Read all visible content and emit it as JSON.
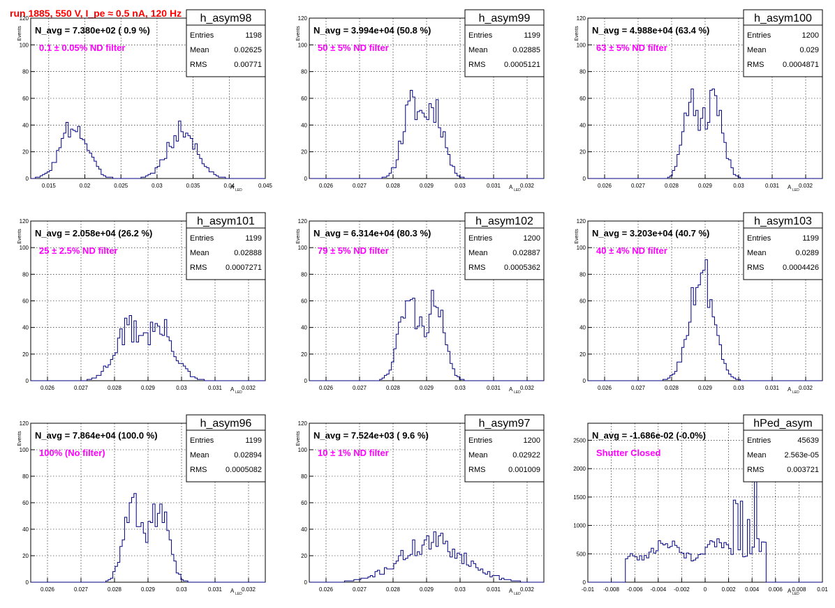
{
  "header": {
    "run_title": "run 1885,   550 V, I_pe ≈ 0.5 nA, 120 Hz"
  },
  "colors": {
    "histogram": "#000080",
    "grid": "#000000",
    "frame": "#000000",
    "title_red": "#ff0000",
    "annotation_magenta": "#ff00ff"
  },
  "stats_labels": {
    "entries": "Entries",
    "mean": "Mean",
    "rms": "RMS"
  },
  "chart_data": [
    {
      "type": "histogram",
      "name": "h_asym98",
      "ylabel": "Events",
      "xlabel": "A",
      "xlabel_sub": "LED",
      "xlim": [
        0.0125,
        0.045
      ],
      "ylim": [
        0,
        120
      ],
      "xticks": [
        0.015,
        0.02,
        0.025,
        0.03,
        0.035,
        0.04,
        0.045
      ],
      "xtick_labels": [
        "0.015",
        "0.02",
        "0.025",
        "0.03",
        "0.035",
        "0.04",
        "0.045"
      ],
      "yticks": [
        0,
        20,
        40,
        60,
        80,
        100,
        120
      ],
      "ytick_labels": [
        "0",
        "20",
        "40",
        "60",
        "80",
        "100",
        "120"
      ],
      "navg": "N_avg = 7.380e+02 ( 0.9 %)",
      "annotation": "0.1 ± 0.05% ND filter",
      "stats": {
        "entries": "1198",
        "mean": "0.02625",
        "rms": "0.00771"
      },
      "peaks": [
        {
          "c": 0.0185,
          "a": 40,
          "s": 0.0018
        },
        {
          "c": 0.0335,
          "a": 36,
          "s": 0.002
        }
      ],
      "noise": 0.25,
      "bins": 100,
      "seed": 3
    },
    {
      "type": "histogram",
      "name": "h_asym99",
      "ylabel": "Events",
      "xlabel": "A",
      "xlabel_sub": "LED",
      "xlim": [
        0.0255,
        0.0325
      ],
      "ylim": [
        0,
        120
      ],
      "xticks": [
        0.026,
        0.027,
        0.028,
        0.029,
        0.03,
        0.031,
        0.032
      ],
      "xtick_labels": [
        "0.026",
        "0.027",
        "0.028",
        "0.029",
        "0.03",
        "0.031",
        "0.032"
      ],
      "yticks": [
        0,
        20,
        40,
        60,
        80,
        100,
        120
      ],
      "ytick_labels": [
        "0",
        "20",
        "40",
        "60",
        "80",
        "100",
        "120"
      ],
      "navg": "N_avg = 3.994e+04 (50.8 %)",
      "annotation": "50 ± 5% ND filter",
      "stats": {
        "entries": "1199",
        "mean": "0.02885",
        "rms": "0.0005121"
      },
      "peaks": [
        {
          "c": 0.02855,
          "a": 52,
          "s": 0.00028
        },
        {
          "c": 0.02925,
          "a": 52,
          "s": 0.00028
        }
      ],
      "noise": 0.25,
      "bins": 100,
      "seed": 11
    },
    {
      "type": "histogram",
      "name": "h_asym100",
      "ylabel": "Events",
      "xlabel": "A",
      "xlabel_sub": "LED",
      "xlim": [
        0.0255,
        0.0325
      ],
      "ylim": [
        0,
        120
      ],
      "xticks": [
        0.026,
        0.027,
        0.028,
        0.029,
        0.03,
        0.031,
        0.032
      ],
      "xtick_labels": [
        "0.026",
        "0.027",
        "0.028",
        "0.029",
        "0.03",
        "0.031",
        "0.032"
      ],
      "yticks": [
        0,
        20,
        40,
        60,
        80,
        100,
        120
      ],
      "ytick_labels": [
        "0",
        "20",
        "40",
        "60",
        "80",
        "100",
        "120"
      ],
      "navg": "N_avg = 4.988e+04 (63.4 %)",
      "annotation": "63 ± 5% ND filter",
      "stats": {
        "entries": "1200",
        "mean": "0.029",
        "rms": "0.0004871"
      },
      "peaks": [
        {
          "c": 0.0286,
          "a": 58,
          "s": 0.00025
        },
        {
          "c": 0.0293,
          "a": 56,
          "s": 0.00025
        }
      ],
      "noise": 0.25,
      "bins": 100,
      "seed": 21
    },
    {
      "type": "histogram",
      "name": "h_asym101",
      "ylabel": "Events",
      "xlabel": "A",
      "xlabel_sub": "LED",
      "xlim": [
        0.0255,
        0.0325
      ],
      "ylim": [
        0,
        120
      ],
      "xticks": [
        0.026,
        0.027,
        0.028,
        0.029,
        0.03,
        0.031,
        0.032
      ],
      "xtick_labels": [
        "0.026",
        "0.027",
        "0.028",
        "0.029",
        "0.03",
        "0.031",
        "0.032"
      ],
      "yticks": [
        0,
        20,
        40,
        60,
        80,
        100,
        120
      ],
      "ytick_labels": [
        "0",
        "20",
        "40",
        "60",
        "80",
        "100",
        "120"
      ],
      "navg": "N_avg = 2.058e+04 (26.2 %)",
      "annotation": "25 ± 2.5% ND filter",
      "stats": {
        "entries": "1199",
        "mean": "0.02888",
        "rms": "0.0007271"
      },
      "peaks": [
        {
          "c": 0.0284,
          "a": 36,
          "s": 0.00042
        },
        {
          "c": 0.0294,
          "a": 36,
          "s": 0.00042
        }
      ],
      "noise": 0.3,
      "bins": 100,
      "seed": 31
    },
    {
      "type": "histogram",
      "name": "h_asym102",
      "ylabel": "Events",
      "xlabel": "A",
      "xlabel_sub": "LED",
      "xlim": [
        0.0255,
        0.0325
      ],
      "ylim": [
        0,
        120
      ],
      "xticks": [
        0.026,
        0.027,
        0.028,
        0.029,
        0.03,
        0.031,
        0.032
      ],
      "xtick_labels": [
        "0.026",
        "0.027",
        "0.028",
        "0.029",
        "0.03",
        "0.031",
        "0.032"
      ],
      "yticks": [
        0,
        20,
        40,
        60,
        80,
        100,
        120
      ],
      "ytick_labels": [
        "0",
        "20",
        "40",
        "60",
        "80",
        "100",
        "120"
      ],
      "navg": "N_avg = 6.314e+04 (80.3 %)",
      "annotation": "79 ± 5% ND filter",
      "stats": {
        "entries": "1200",
        "mean": "0.02887",
        "rms": "0.0005362"
      },
      "peaks": [
        {
          "c": 0.02845,
          "a": 58,
          "s": 0.00028
        },
        {
          "c": 0.02925,
          "a": 55,
          "s": 0.00028
        }
      ],
      "noise": 0.25,
      "bins": 100,
      "seed": 41
    },
    {
      "type": "histogram",
      "name": "h_asym103",
      "ylabel": "Events",
      "xlabel": "A",
      "xlabel_sub": "LED",
      "xlim": [
        0.0255,
        0.0325
      ],
      "ylim": [
        0,
        120
      ],
      "xticks": [
        0.026,
        0.027,
        0.028,
        0.029,
        0.03,
        0.031,
        0.032
      ],
      "xtick_labels": [
        "0.026",
        "0.027",
        "0.028",
        "0.029",
        "0.03",
        "0.031",
        "0.032"
      ],
      "yticks": [
        0,
        20,
        40,
        60,
        80,
        100,
        120
      ],
      "ytick_labels": [
        "0",
        "20",
        "40",
        "60",
        "80",
        "100",
        "120"
      ],
      "navg": "N_avg = 3.203e+04 (40.7 %)",
      "annotation": "40 ± 4% ND filter",
      "stats": {
        "entries": "1199",
        "mean": "0.0289",
        "rms": "0.0004426"
      },
      "peaks": [
        {
          "c": 0.0289,
          "a": 82,
          "s": 0.00036
        }
      ],
      "noise": 0.22,
      "bins": 100,
      "seed": 51
    },
    {
      "type": "histogram",
      "name": "h_asym96",
      "ylabel": "Events",
      "xlabel": "A",
      "xlabel_sub": "LED",
      "xlim": [
        0.0255,
        0.0325
      ],
      "ylim": [
        0,
        120
      ],
      "xticks": [
        0.026,
        0.027,
        0.028,
        0.029,
        0.03,
        0.031,
        0.032
      ],
      "xtick_labels": [
        "0.026",
        "0.027",
        "0.028",
        "0.029",
        "0.03",
        "0.031",
        "0.032"
      ],
      "yticks": [
        0,
        20,
        40,
        60,
        80,
        100,
        120
      ],
      "ytick_labels": [
        "0",
        "20",
        "40",
        "60",
        "80",
        "100",
        "120"
      ],
      "navg": "N_avg = 7.864e+04 (100.0 %)",
      "annotation": "100% (No filter)",
      "stats": {
        "entries": "1199",
        "mean": "0.02894",
        "rms": "0.0005082"
      },
      "peaks": [
        {
          "c": 0.02855,
          "a": 56,
          "s": 0.00027
        },
        {
          "c": 0.02935,
          "a": 54,
          "s": 0.00027
        }
      ],
      "noise": 0.25,
      "bins": 100,
      "seed": 61
    },
    {
      "type": "histogram",
      "name": "h_asym97",
      "ylabel": "Events",
      "xlabel": "A",
      "xlabel_sub": "LED",
      "xlim": [
        0.0255,
        0.0325
      ],
      "ylim": [
        0,
        120
      ],
      "xticks": [
        0.026,
        0.027,
        0.028,
        0.029,
        0.03,
        0.031,
        0.032
      ],
      "xtick_labels": [
        "0.026",
        "0.027",
        "0.028",
        "0.029",
        "0.03",
        "0.031",
        "0.032"
      ],
      "yticks": [
        0,
        20,
        40,
        60,
        80,
        100,
        120
      ],
      "ytick_labels": [
        "0",
        "20",
        "40",
        "60",
        "80",
        "100",
        "120"
      ],
      "navg": "N_avg = 7.524e+03 ( 9.6 %)",
      "annotation": "10 ± 1% ND filter",
      "stats": {
        "entries": "1200",
        "mean": "0.02922",
        "rms": "0.001009"
      },
      "peaks": [
        {
          "c": 0.0292,
          "a": 30,
          "s": 0.00095
        }
      ],
      "noise": 0.3,
      "bins": 100,
      "seed": 71
    },
    {
      "type": "histogram",
      "name": "hPed_asym",
      "ylabel": "",
      "xlabel": "A",
      "xlabel_sub": "LED",
      "xlim": [
        -0.01,
        0.01
      ],
      "ylim": [
        0,
        2800
      ],
      "xticks": [
        -0.01,
        -0.008,
        -0.006,
        -0.004,
        -0.002,
        0,
        0.002,
        0.004,
        0.006,
        0.008,
        0.01
      ],
      "xtick_labels": [
        "-0.01",
        "-0.008",
        "-0.006",
        "-0.004",
        "-0.002",
        "0",
        "0.002",
        "0.004",
        "0.006",
        "0.008",
        "0.01"
      ],
      "yticks": [
        0,
        500,
        1000,
        1500,
        2000,
        2500
      ],
      "ytick_labels": [
        "0",
        "500",
        "1000",
        "1500",
        "2000",
        "2500"
      ],
      "navg": "N_avg = -1.686e-02 (-0.0%)",
      "annotation": "Shutter Closed",
      "stats": {
        "entries": "45639",
        "mean": "2.563e-05",
        "rms": "0.003721"
      },
      "ped_spikes": [
        [
          -0.0066,
          1150
        ],
        [
          0.0026,
          2800
        ],
        [
          0.0043,
          2650
        ],
        [
          0.0031,
          1500
        ],
        [
          0.0037,
          1100
        ]
      ],
      "ped_range": [
        -0.0068,
        0.0052
      ],
      "ped_base": 560,
      "noise": 0.15,
      "bins": 100,
      "seed": 81
    }
  ]
}
